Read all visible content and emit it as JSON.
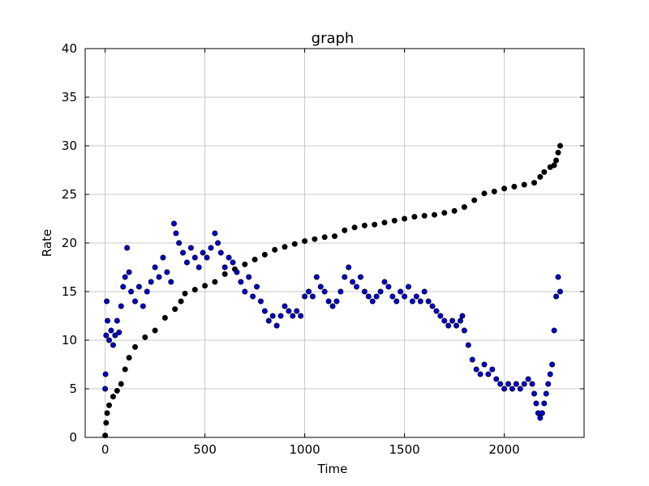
{
  "chart_data": {
    "type": "scatter",
    "title": "graph",
    "xlabel": "Time",
    "ylabel": "Rate",
    "xlim": [
      -100,
      2400
    ],
    "ylim": [
      0,
      40
    ],
    "xticks": [
      0,
      500,
      1000,
      1500,
      2000
    ],
    "yticks": [
      0,
      5,
      10,
      15,
      20,
      25,
      30,
      35,
      40
    ],
    "grid": true,
    "series": [
      {
        "color": "#000000",
        "points": [
          [
            0,
            0.2
          ],
          [
            5,
            1.5
          ],
          [
            10,
            2.5
          ],
          [
            20,
            3.3
          ],
          [
            40,
            4.2
          ],
          [
            60,
            4.8
          ],
          [
            80,
            5.5
          ],
          [
            100,
            7.0
          ],
          [
            120,
            8.2
          ],
          [
            150,
            9.3
          ],
          [
            200,
            10.3
          ],
          [
            250,
            11.0
          ],
          [
            300,
            12.3
          ],
          [
            350,
            13.2
          ],
          [
            380,
            14.0
          ],
          [
            400,
            14.8
          ],
          [
            450,
            15.2
          ],
          [
            500,
            15.6
          ],
          [
            550,
            16.0
          ],
          [
            600,
            16.8
          ],
          [
            650,
            17.3
          ],
          [
            700,
            17.8
          ],
          [
            750,
            18.3
          ],
          [
            800,
            18.8
          ],
          [
            850,
            19.3
          ],
          [
            900,
            19.6
          ],
          [
            950,
            19.9
          ],
          [
            1000,
            20.2
          ],
          [
            1050,
            20.4
          ],
          [
            1100,
            20.6
          ],
          [
            1150,
            20.7
          ],
          [
            1200,
            21.3
          ],
          [
            1250,
            21.6
          ],
          [
            1300,
            21.8
          ],
          [
            1350,
            21.9
          ],
          [
            1400,
            22.1
          ],
          [
            1450,
            22.3
          ],
          [
            1500,
            22.5
          ],
          [
            1550,
            22.7
          ],
          [
            1600,
            22.8
          ],
          [
            1650,
            22.9
          ],
          [
            1700,
            23.1
          ],
          [
            1750,
            23.3
          ],
          [
            1800,
            23.7
          ],
          [
            1850,
            24.4
          ],
          [
            1900,
            25.1
          ],
          [
            1950,
            25.3
          ],
          [
            2000,
            25.6
          ],
          [
            2050,
            25.8
          ],
          [
            2100,
            26.0
          ],
          [
            2150,
            26.2
          ],
          [
            2180,
            26.8
          ],
          [
            2200,
            27.3
          ],
          [
            2230,
            27.8
          ],
          [
            2250,
            28.0
          ],
          [
            2260,
            28.5
          ],
          [
            2270,
            29.3
          ],
          [
            2280,
            30.0
          ]
        ]
      },
      {
        "color": "#0000cc",
        "points": [
          [
            0,
            5.0
          ],
          [
            2,
            6.5
          ],
          [
            5,
            10.5
          ],
          [
            8,
            14.0
          ],
          [
            12,
            12.0
          ],
          [
            20,
            10.0
          ],
          [
            30,
            11.0
          ],
          [
            40,
            9.5
          ],
          [
            50,
            10.5
          ],
          [
            60,
            12.0
          ],
          [
            70,
            10.8
          ],
          [
            80,
            13.5
          ],
          [
            90,
            15.5
          ],
          [
            100,
            16.5
          ],
          [
            110,
            19.5
          ],
          [
            120,
            17.0
          ],
          [
            130,
            15.0
          ],
          [
            150,
            14.0
          ],
          [
            170,
            15.5
          ],
          [
            190,
            13.5
          ],
          [
            210,
            15.0
          ],
          [
            230,
            16.0
          ],
          [
            250,
            17.5
          ],
          [
            270,
            16.5
          ],
          [
            290,
            18.5
          ],
          [
            310,
            17.0
          ],
          [
            330,
            16.0
          ],
          [
            345,
            22.0
          ],
          [
            355,
            21.0
          ],
          [
            370,
            20.0
          ],
          [
            390,
            19.0
          ],
          [
            410,
            18.0
          ],
          [
            430,
            19.5
          ],
          [
            450,
            18.5
          ],
          [
            470,
            17.5
          ],
          [
            490,
            19.0
          ],
          [
            510,
            18.5
          ],
          [
            530,
            19.5
          ],
          [
            550,
            21.0
          ],
          [
            565,
            20.0
          ],
          [
            580,
            19.0
          ],
          [
            600,
            17.5
          ],
          [
            620,
            18.5
          ],
          [
            640,
            18.0
          ],
          [
            660,
            17.0
          ],
          [
            680,
            16.0
          ],
          [
            700,
            15.0
          ],
          [
            720,
            16.5
          ],
          [
            740,
            14.5
          ],
          [
            760,
            15.5
          ],
          [
            780,
            14.0
          ],
          [
            800,
            13.0
          ],
          [
            820,
            12.0
          ],
          [
            840,
            12.5
          ],
          [
            860,
            11.5
          ],
          [
            880,
            12.5
          ],
          [
            900,
            13.5
          ],
          [
            920,
            13.0
          ],
          [
            940,
            12.5
          ],
          [
            960,
            13.0
          ],
          [
            980,
            12.5
          ],
          [
            1000,
            14.5
          ],
          [
            1020,
            15.0
          ],
          [
            1040,
            14.5
          ],
          [
            1060,
            16.5
          ],
          [
            1080,
            15.5
          ],
          [
            1100,
            15.0
          ],
          [
            1120,
            14.0
          ],
          [
            1140,
            13.5
          ],
          [
            1160,
            14.0
          ],
          [
            1180,
            15.0
          ],
          [
            1200,
            16.5
          ],
          [
            1220,
            17.5
          ],
          [
            1240,
            16.0
          ],
          [
            1260,
            15.5
          ],
          [
            1280,
            16.5
          ],
          [
            1300,
            15.0
          ],
          [
            1320,
            14.5
          ],
          [
            1340,
            14.0
          ],
          [
            1360,
            14.5
          ],
          [
            1380,
            15.0
          ],
          [
            1400,
            16.0
          ],
          [
            1420,
            15.5
          ],
          [
            1440,
            14.5
          ],
          [
            1460,
            14.0
          ],
          [
            1480,
            15.0
          ],
          [
            1500,
            14.5
          ],
          [
            1520,
            15.5
          ],
          [
            1540,
            14.0
          ],
          [
            1560,
            14.5
          ],
          [
            1580,
            14.0
          ],
          [
            1600,
            15.0
          ],
          [
            1620,
            14.0
          ],
          [
            1640,
            13.5
          ],
          [
            1660,
            13.0
          ],
          [
            1680,
            12.5
          ],
          [
            1700,
            12.0
          ],
          [
            1720,
            11.5
          ],
          [
            1740,
            12.0
          ],
          [
            1760,
            11.5
          ],
          [
            1780,
            12.0
          ],
          [
            1790,
            12.5
          ],
          [
            1800,
            11.0
          ],
          [
            1820,
            9.5
          ],
          [
            1840,
            8.0
          ],
          [
            1860,
            7.0
          ],
          [
            1880,
            6.5
          ],
          [
            1900,
            7.5
          ],
          [
            1920,
            6.5
          ],
          [
            1940,
            7.0
          ],
          [
            1960,
            6.0
          ],
          [
            1980,
            5.5
          ],
          [
            2000,
            5.0
          ],
          [
            2020,
            5.5
          ],
          [
            2040,
            5.0
          ],
          [
            2060,
            5.5
          ],
          [
            2080,
            5.0
          ],
          [
            2100,
            5.5
          ],
          [
            2120,
            6.0
          ],
          [
            2140,
            5.5
          ],
          [
            2150,
            4.5
          ],
          [
            2160,
            3.5
          ],
          [
            2170,
            2.5
          ],
          [
            2180,
            2.0
          ],
          [
            2190,
            2.5
          ],
          [
            2200,
            3.5
          ],
          [
            2210,
            4.5
          ],
          [
            2220,
            5.5
          ],
          [
            2230,
            6.5
          ],
          [
            2240,
            7.5
          ],
          [
            2250,
            11.0
          ],
          [
            2260,
            14.5
          ],
          [
            2270,
            16.5
          ],
          [
            2280,
            15.0
          ]
        ]
      }
    ]
  }
}
